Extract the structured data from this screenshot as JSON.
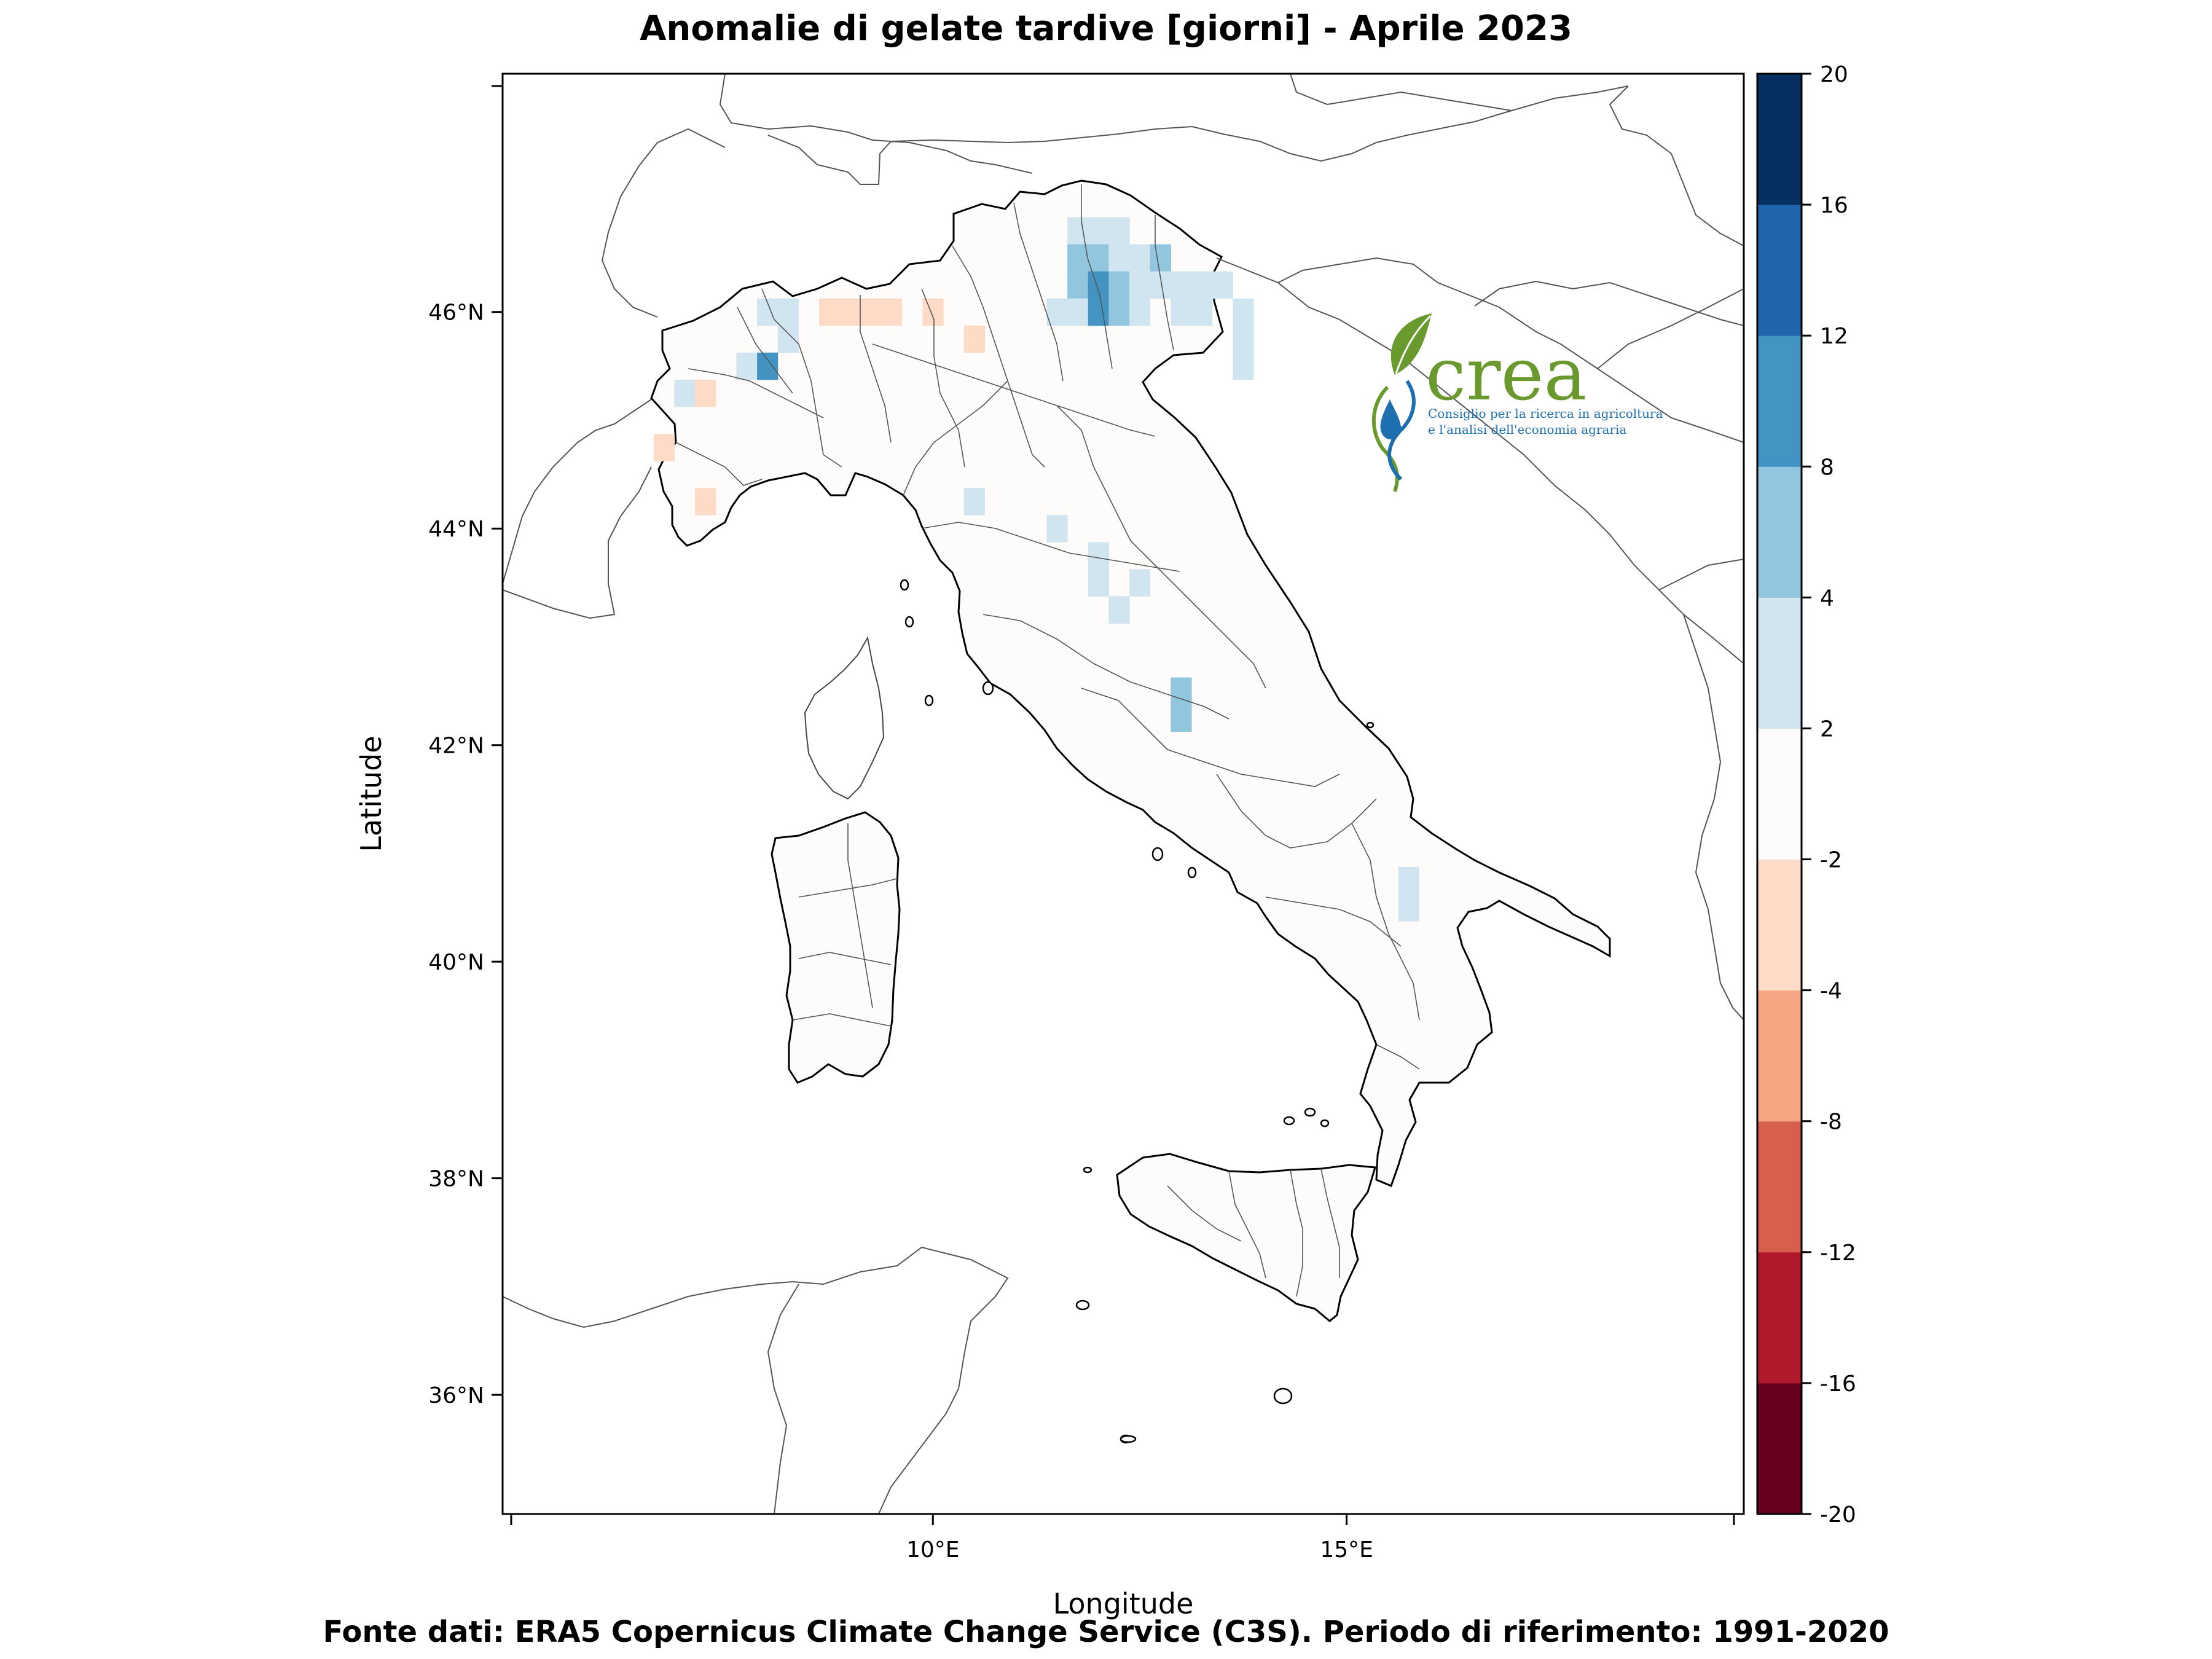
{
  "title": "Anomalie di gelate tardive [giorni] - Aprile 2023",
  "footer": "Fonte dati: ERA5 Copernicus Climate Change Service (C3S). Periodo di riferimento: 1991-2020",
  "x_axis": {
    "label": "Longitude",
    "range": [
      4.8,
      19.8
    ],
    "ticks": [
      {
        "value": 10,
        "label": "10°E"
      },
      {
        "value": 15,
        "label": "15°E"
      }
    ]
  },
  "y_axis": {
    "label": "Latitude",
    "range": [
      34.9,
      48.2
    ],
    "ticks": [
      {
        "value": 36,
        "label": "36°N"
      },
      {
        "value": 38,
        "label": "38°N"
      },
      {
        "value": 40,
        "label": "40°N"
      },
      {
        "value": 42,
        "label": "42°N"
      },
      {
        "value": 44,
        "label": "44°N"
      },
      {
        "value": 46,
        "label": "46°N"
      }
    ]
  },
  "colorbar": {
    "bins": [
      {
        "from": -20,
        "to": -16,
        "color": "#67001f"
      },
      {
        "from": -16,
        "to": -12,
        "color": "#b2182b"
      },
      {
        "from": -12,
        "to": -8,
        "color": "#d6604d"
      },
      {
        "from": -8,
        "to": -4,
        "color": "#f4a582"
      },
      {
        "from": -4,
        "to": -2,
        "color": "#fddbc7"
      },
      {
        "from": -2,
        "to": 2,
        "color": "#fdfcfa"
      },
      {
        "from": 2,
        "to": 4,
        "color": "#d1e5f0"
      },
      {
        "from": 4,
        "to": 8,
        "color": "#92c5de"
      },
      {
        "from": 8,
        "to": 12,
        "color": "#4393c3"
      },
      {
        "from": 12,
        "to": 16,
        "color": "#2166ac"
      },
      {
        "from": 16,
        "to": 20,
        "color": "#053061"
      }
    ],
    "tick_labels": [
      "-20",
      "-16",
      "-12",
      "-8",
      "-4",
      "-2",
      "2",
      "4",
      "8",
      "12",
      "16",
      "20"
    ]
  },
  "logo": {
    "name": "crea",
    "line1": "Consiglio per la ricerca in agricoltura",
    "line2": "e l'analisi dell'economia agraria",
    "colors": {
      "green": "#6a9a2e",
      "blue": "#1e6fb0"
    }
  },
  "chart_data": {
    "type": "heatmap",
    "cell_size_deg": 0.25,
    "anomaly_cells": [
      {
        "lon": 11.75,
        "lat": 46.75,
        "value": 3
      },
      {
        "lon": 12.0,
        "lat": 46.75,
        "value": 3
      },
      {
        "lon": 12.25,
        "lat": 46.75,
        "value": 3
      },
      {
        "lon": 11.75,
        "lat": 46.5,
        "value": 5
      },
      {
        "lon": 12.0,
        "lat": 46.5,
        "value": 5
      },
      {
        "lon": 12.25,
        "lat": 46.5,
        "value": 3
      },
      {
        "lon": 12.5,
        "lat": 46.5,
        "value": 3
      },
      {
        "lon": 12.75,
        "lat": 46.5,
        "value": 5
      },
      {
        "lon": 11.75,
        "lat": 46.25,
        "value": 5
      },
      {
        "lon": 12.0,
        "lat": 46.25,
        "value": 9
      },
      {
        "lon": 12.25,
        "lat": 46.25,
        "value": 5
      },
      {
        "lon": 12.5,
        "lat": 46.25,
        "value": 3
      },
      {
        "lon": 12.75,
        "lat": 46.25,
        "value": 3
      },
      {
        "lon": 13.0,
        "lat": 46.25,
        "value": 3
      },
      {
        "lon": 13.25,
        "lat": 46.25,
        "value": 3
      },
      {
        "lon": 13.5,
        "lat": 46.25,
        "value": 3
      },
      {
        "lon": 11.5,
        "lat": 46.0,
        "value": 3
      },
      {
        "lon": 11.75,
        "lat": 46.0,
        "value": 3
      },
      {
        "lon": 12.0,
        "lat": 46.0,
        "value": 9
      },
      {
        "lon": 12.25,
        "lat": 46.0,
        "value": 5
      },
      {
        "lon": 12.5,
        "lat": 46.0,
        "value": 3
      },
      {
        "lon": 13.0,
        "lat": 46.0,
        "value": 3
      },
      {
        "lon": 13.25,
        "lat": 46.0,
        "value": 3
      },
      {
        "lon": 13.75,
        "lat": 46.0,
        "value": 3
      },
      {
        "lon": 13.75,
        "lat": 45.75,
        "value": 3
      },
      {
        "lon": 13.75,
        "lat": 45.5,
        "value": 3
      },
      {
        "lon": 8.0,
        "lat": 46.0,
        "value": 3
      },
      {
        "lon": 8.25,
        "lat": 46.0,
        "value": 3
      },
      {
        "lon": 8.25,
        "lat": 45.75,
        "value": 3
      },
      {
        "lon": 7.75,
        "lat": 45.5,
        "value": 3
      },
      {
        "lon": 8.0,
        "lat": 45.5,
        "value": 9
      },
      {
        "lon": 7.0,
        "lat": 45.25,
        "value": 3
      },
      {
        "lon": 8.75,
        "lat": 46.0,
        "value": -3
      },
      {
        "lon": 9.0,
        "lat": 46.0,
        "value": -3
      },
      {
        "lon": 9.25,
        "lat": 46.0,
        "value": -3
      },
      {
        "lon": 9.5,
        "lat": 46.0,
        "value": -3
      },
      {
        "lon": 10.0,
        "lat": 46.0,
        "value": -3
      },
      {
        "lon": 10.5,
        "lat": 45.75,
        "value": -3
      },
      {
        "lon": 7.25,
        "lat": 45.25,
        "value": -3
      },
      {
        "lon": 6.75,
        "lat": 44.75,
        "value": -3
      },
      {
        "lon": 7.25,
        "lat": 44.25,
        "value": -3
      },
      {
        "lon": 10.5,
        "lat": 44.25,
        "value": 3
      },
      {
        "lon": 11.5,
        "lat": 44.0,
        "value": 3
      },
      {
        "lon": 12.0,
        "lat": 43.75,
        "value": 3
      },
      {
        "lon": 12.5,
        "lat": 43.5,
        "value": 3
      },
      {
        "lon": 12.0,
        "lat": 43.5,
        "value": 3
      },
      {
        "lon": 12.25,
        "lat": 43.25,
        "value": 3
      },
      {
        "lon": 13.0,
        "lat": 42.5,
        "value": 5
      },
      {
        "lon": 13.0,
        "lat": 42.25,
        "value": 5
      },
      {
        "lon": 15.75,
        "lat": 40.75,
        "value": 3
      },
      {
        "lon": 15.75,
        "lat": 40.5,
        "value": 3
      }
    ]
  }
}
